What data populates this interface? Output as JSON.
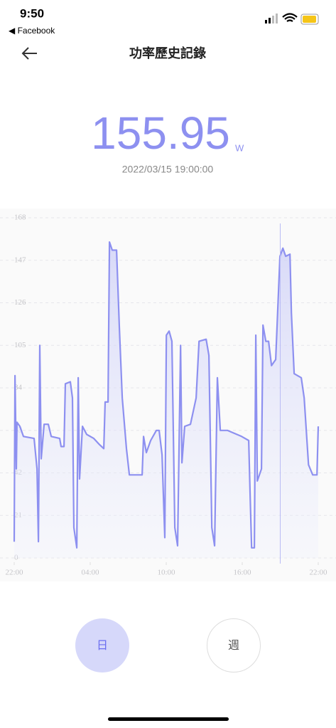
{
  "status_bar": {
    "time": "9:50",
    "back_app": "◀ Facebook"
  },
  "header": {
    "title": "功率歷史記錄"
  },
  "reading": {
    "value": "155.95",
    "unit": "W",
    "time": "2022/03/15 19:00:00"
  },
  "chart_data": {
    "type": "line",
    "color": "#8d90f0",
    "grid": true,
    "xlim": [
      0,
      24
    ],
    "ylim": [
      0,
      168
    ],
    "xticks": [
      {
        "value": 0,
        "label": "22:00"
      },
      {
        "value": 6,
        "label": "04:00"
      },
      {
        "value": 12,
        "label": "10:00"
      },
      {
        "value": 18,
        "label": "16:00"
      },
      {
        "value": 24,
        "label": "22:00"
      }
    ],
    "yticks": [
      0,
      21,
      42,
      63,
      84,
      105,
      126,
      147,
      168
    ],
    "cursor_x": 21,
    "x": [
      0,
      0.06,
      0.17,
      0.22,
      0.45,
      0.73,
      1.57,
      1.8,
      1.91,
      2.02,
      2.13,
      2.36,
      2.69,
      2.92,
      3.59,
      3.7,
      3.93,
      4.04,
      4.43,
      4.6,
      4.71,
      4.94,
      5.05,
      5.16,
      5.39,
      5.72,
      6.28,
      6.73,
      7.07,
      7.18,
      7.41,
      7.52,
      7.74,
      8.08,
      8.3,
      8.53,
      8.86,
      9.09,
      10.1,
      10.21,
      10.43,
      10.77,
      11.22,
      11.44,
      11.67,
      11.89,
      12.01,
      12.23,
      12.45,
      12.68,
      12.9,
      13.13,
      13.24,
      13.46,
      13.91,
      14.36,
      14.59,
      15.15,
      15.37,
      15.6,
      15.82,
      16.04,
      16.27,
      16.83,
      17.95,
      18.51,
      18.63,
      18.74,
      18.96,
      19.07,
      19.19,
      19.52,
      19.64,
      19.86,
      20.08,
      20.31,
      20.64,
      20.98,
      21.21,
      21.43,
      21.77,
      21.88,
      22.1,
      22.66,
      22.89,
      23.23,
      23.56,
      23.9,
      24
    ],
    "values": [
      8,
      90,
      44,
      67,
      65,
      60,
      59,
      44,
      8,
      105,
      49,
      66,
      66,
      60,
      59,
      55,
      55,
      86,
      87,
      79,
      15,
      5,
      89,
      39,
      65,
      61,
      59,
      56,
      54,
      77,
      77,
      156,
      152,
      152,
      114,
      79,
      54,
      41,
      41,
      60,
      52,
      58,
      63,
      63,
      51,
      10,
      110,
      112,
      107,
      15,
      6,
      105,
      47,
      65,
      66,
      79,
      107,
      108,
      100,
      15,
      6,
      89,
      63,
      63,
      60,
      58,
      30,
      5,
      5,
      110,
      38,
      44,
      115,
      107,
      107,
      95,
      98,
      149,
      153,
      149,
      150,
      121,
      91,
      89,
      79,
      46,
      41,
      41,
      65
    ]
  }
}
